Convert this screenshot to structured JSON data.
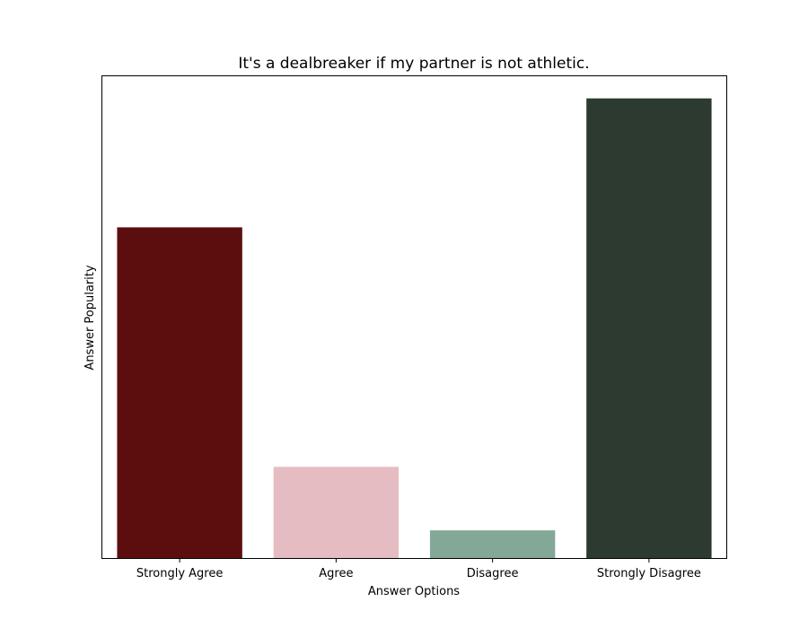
{
  "chart_data": {
    "type": "bar",
    "title": "It's a dealbreaker if my partner is not athletic.",
    "xlabel": "Answer Options",
    "ylabel": "Answer Popularity",
    "categories": [
      "Strongly Agree",
      "Agree",
      "Disagree",
      "Strongly Disagree"
    ],
    "values": [
      0.72,
      0.2,
      0.062,
      1.0
    ],
    "colors": [
      "#5c0e0e",
      "#e6bcc3",
      "#84a898",
      "#2d3a2f"
    ],
    "ylim": [
      0,
      1.05
    ],
    "y_ticks_shown": false,
    "grid": false,
    "legend": false
  }
}
